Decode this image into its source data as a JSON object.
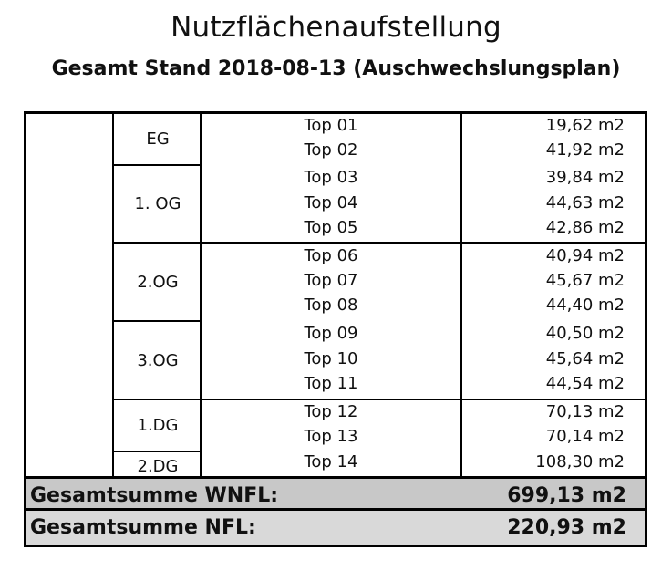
{
  "title": "Nutzflächenaufstellung",
  "subtitle": "Gesamt Stand 2018-08-13 (Auschwechslungsplan)",
  "floors": [
    {
      "name": "EG",
      "tops": [
        {
          "top": "Top 01",
          "area": "19,62  m2"
        },
        {
          "top": "Top 02",
          "area": "41,92  m2"
        }
      ]
    },
    {
      "name": "1. OG",
      "tops": [
        {
          "top": "Top 03",
          "area": "39,84  m2"
        },
        {
          "top": "Top 04",
          "area": "44,63  m2"
        },
        {
          "top": "Top 05",
          "area": "42,86  m2"
        }
      ]
    },
    {
      "name": "2.OG",
      "tops": [
        {
          "top": "Top 06",
          "area": "40,94  m2"
        },
        {
          "top": "Top 07",
          "area": "45,67  m2"
        },
        {
          "top": "Top 08",
          "area": "44,40  m2"
        }
      ]
    },
    {
      "name": "3.OG",
      "tops": [
        {
          "top": "Top 09",
          "area": "40,50  m2"
        },
        {
          "top": "Top 10",
          "area": "45,64  m2"
        },
        {
          "top": "Top 11",
          "area": "44,54  m2"
        }
      ]
    },
    {
      "name": "1.DG",
      "tops": [
        {
          "top": "Top 12",
          "area": "70,13  m2"
        },
        {
          "top": "Top 13",
          "area": "70,14  m2"
        }
      ]
    },
    {
      "name": "2.DG",
      "tops": [
        {
          "top": "Top 14",
          "area": "108,30  m2"
        }
      ]
    }
  ],
  "totals": {
    "wnfl_label": "Gesamtsumme WNFL:",
    "wnfl_value": "699,13  m2",
    "nfl_label": "Gesamtsumme NFL:",
    "nfl_value": "220,93  m2"
  },
  "colors": {
    "sum_bg": "#c8c8c8",
    "nfl_bg": "#d9d9d9"
  }
}
